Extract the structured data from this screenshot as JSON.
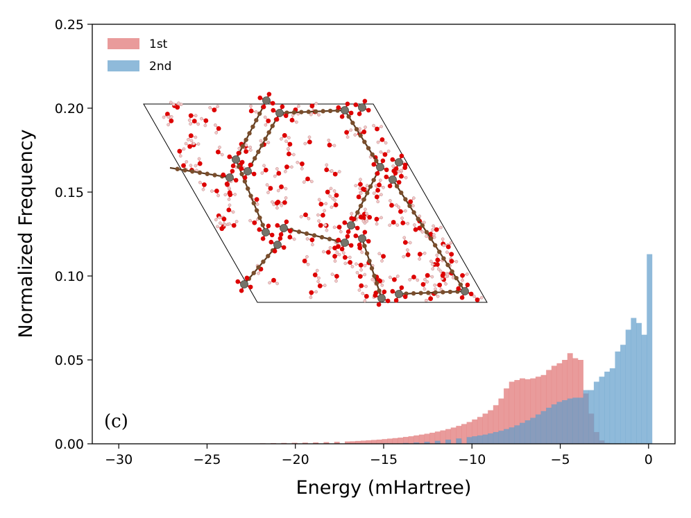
{
  "chart_data": {
    "type": "histogram",
    "xlabel": "Energy (mHartree)",
    "ylabel": "Normalized Frequency",
    "xlim": [
      -31.5,
      1.5
    ],
    "ylim": [
      0,
      0.25
    ],
    "xticks": [
      -30,
      -25,
      -20,
      -15,
      -10,
      -5,
      0
    ],
    "xtick_labels": [
      "−30",
      "−25",
      "−20",
      "−15",
      "−10",
      "−5",
      "0"
    ],
    "yticks": [
      0.0,
      0.05,
      0.1,
      0.15,
      0.2,
      0.25
    ],
    "ytick_labels": [
      "0.00",
      "0.05",
      "0.10",
      "0.15",
      "0.20",
      "0.25"
    ],
    "panel_label": "(c)",
    "legend_position": "top-left",
    "series": [
      {
        "name": "1st",
        "color": "#e07070",
        "opacity": 0.7,
        "bin_width": 0.3,
        "bins": [
          [
            -22.0,
            0.0003
          ],
          [
            -21.4,
            0.0004
          ],
          [
            -20.8,
            0.0005
          ],
          [
            -20.2,
            0.0006
          ],
          [
            -19.6,
            0.0007
          ],
          [
            -19.0,
            0.0008
          ],
          [
            -18.4,
            0.001
          ],
          [
            -17.8,
            0.0012
          ],
          [
            -17.2,
            0.0014
          ],
          [
            -16.9,
            0.0015
          ],
          [
            -16.6,
            0.0017
          ],
          [
            -16.3,
            0.0019
          ],
          [
            -16.0,
            0.0021
          ],
          [
            -15.7,
            0.0023
          ],
          [
            -15.4,
            0.0025
          ],
          [
            -15.1,
            0.0028
          ],
          [
            -14.8,
            0.0031
          ],
          [
            -14.5,
            0.0034
          ],
          [
            -14.2,
            0.0037
          ],
          [
            -13.9,
            0.0041
          ],
          [
            -13.6,
            0.0045
          ],
          [
            -13.3,
            0.005
          ],
          [
            -13.0,
            0.0055
          ],
          [
            -12.7,
            0.006
          ],
          [
            -12.4,
            0.0066
          ],
          [
            -12.1,
            0.0073
          ],
          [
            -11.8,
            0.008
          ],
          [
            -11.5,
            0.0088
          ],
          [
            -11.2,
            0.0097
          ],
          [
            -10.9,
            0.0107
          ],
          [
            -10.6,
            0.0118
          ],
          [
            -10.3,
            0.013
          ],
          [
            -10.0,
            0.0145
          ],
          [
            -9.7,
            0.016
          ],
          [
            -9.4,
            0.018
          ],
          [
            -9.1,
            0.02
          ],
          [
            -8.8,
            0.023
          ],
          [
            -8.5,
            0.027
          ],
          [
            -8.2,
            0.033
          ],
          [
            -7.9,
            0.037
          ],
          [
            -7.6,
            0.038
          ],
          [
            -7.3,
            0.039
          ],
          [
            -7.0,
            0.0385
          ],
          [
            -6.7,
            0.039
          ],
          [
            -6.4,
            0.04
          ],
          [
            -6.1,
            0.041
          ],
          [
            -5.8,
            0.044
          ],
          [
            -5.5,
            0.0465
          ],
          [
            -5.2,
            0.048
          ],
          [
            -4.9,
            0.05
          ],
          [
            -4.6,
            0.054
          ],
          [
            -4.3,
            0.051
          ],
          [
            -4.0,
            0.05
          ],
          [
            -3.7,
            0.03
          ],
          [
            -3.4,
            0.018
          ],
          [
            -3.1,
            0.007
          ],
          [
            -2.8,
            0.002
          ],
          [
            -2.5,
            0.0005
          ]
        ]
      },
      {
        "name": "2nd",
        "color": "#5f9dca",
        "opacity": 0.7,
        "bin_width": 0.3,
        "bins": [
          [
            -17.0,
            0.0001
          ],
          [
            -15.0,
            0.0003
          ],
          [
            -13.9,
            0.0005
          ],
          [
            -13.3,
            0.0008
          ],
          [
            -12.7,
            0.0012
          ],
          [
            -12.1,
            0.0018
          ],
          [
            -11.5,
            0.0025
          ],
          [
            -10.9,
            0.0032
          ],
          [
            -10.3,
            0.004
          ],
          [
            -10.0,
            0.0045
          ],
          [
            -9.7,
            0.005
          ],
          [
            -9.4,
            0.0055
          ],
          [
            -9.1,
            0.0062
          ],
          [
            -8.8,
            0.007
          ],
          [
            -8.5,
            0.0078
          ],
          [
            -8.2,
            0.0088
          ],
          [
            -7.9,
            0.0098
          ],
          [
            -7.6,
            0.011
          ],
          [
            -7.3,
            0.0125
          ],
          [
            -7.0,
            0.014
          ],
          [
            -6.7,
            0.0155
          ],
          [
            -6.4,
            0.0175
          ],
          [
            -6.1,
            0.0195
          ],
          [
            -5.8,
            0.0215
          ],
          [
            -5.5,
            0.0235
          ],
          [
            -5.2,
            0.025
          ],
          [
            -4.9,
            0.026
          ],
          [
            -4.6,
            0.027
          ],
          [
            -4.3,
            0.0275
          ],
          [
            -4.0,
            0.0275
          ],
          [
            -3.7,
            0.032
          ],
          [
            -3.4,
            0.032
          ],
          [
            -3.1,
            0.037
          ],
          [
            -2.8,
            0.04
          ],
          [
            -2.5,
            0.043
          ],
          [
            -2.2,
            0.045
          ],
          [
            -1.9,
            0.055
          ],
          [
            -1.6,
            0.059
          ],
          [
            -1.3,
            0.068
          ],
          [
            -1.0,
            0.075
          ],
          [
            -0.7,
            0.072
          ],
          [
            -0.4,
            0.065
          ],
          [
            -0.1,
            0.113
          ]
        ]
      }
    ]
  },
  "inset": {
    "description_name": "mof-water-supercell",
    "atom_colors": {
      "metal": "#74746a",
      "oxygen": "#dd0000",
      "carbon": "#7a4e2c",
      "hydrogen": "#f2c8c8"
    }
  }
}
